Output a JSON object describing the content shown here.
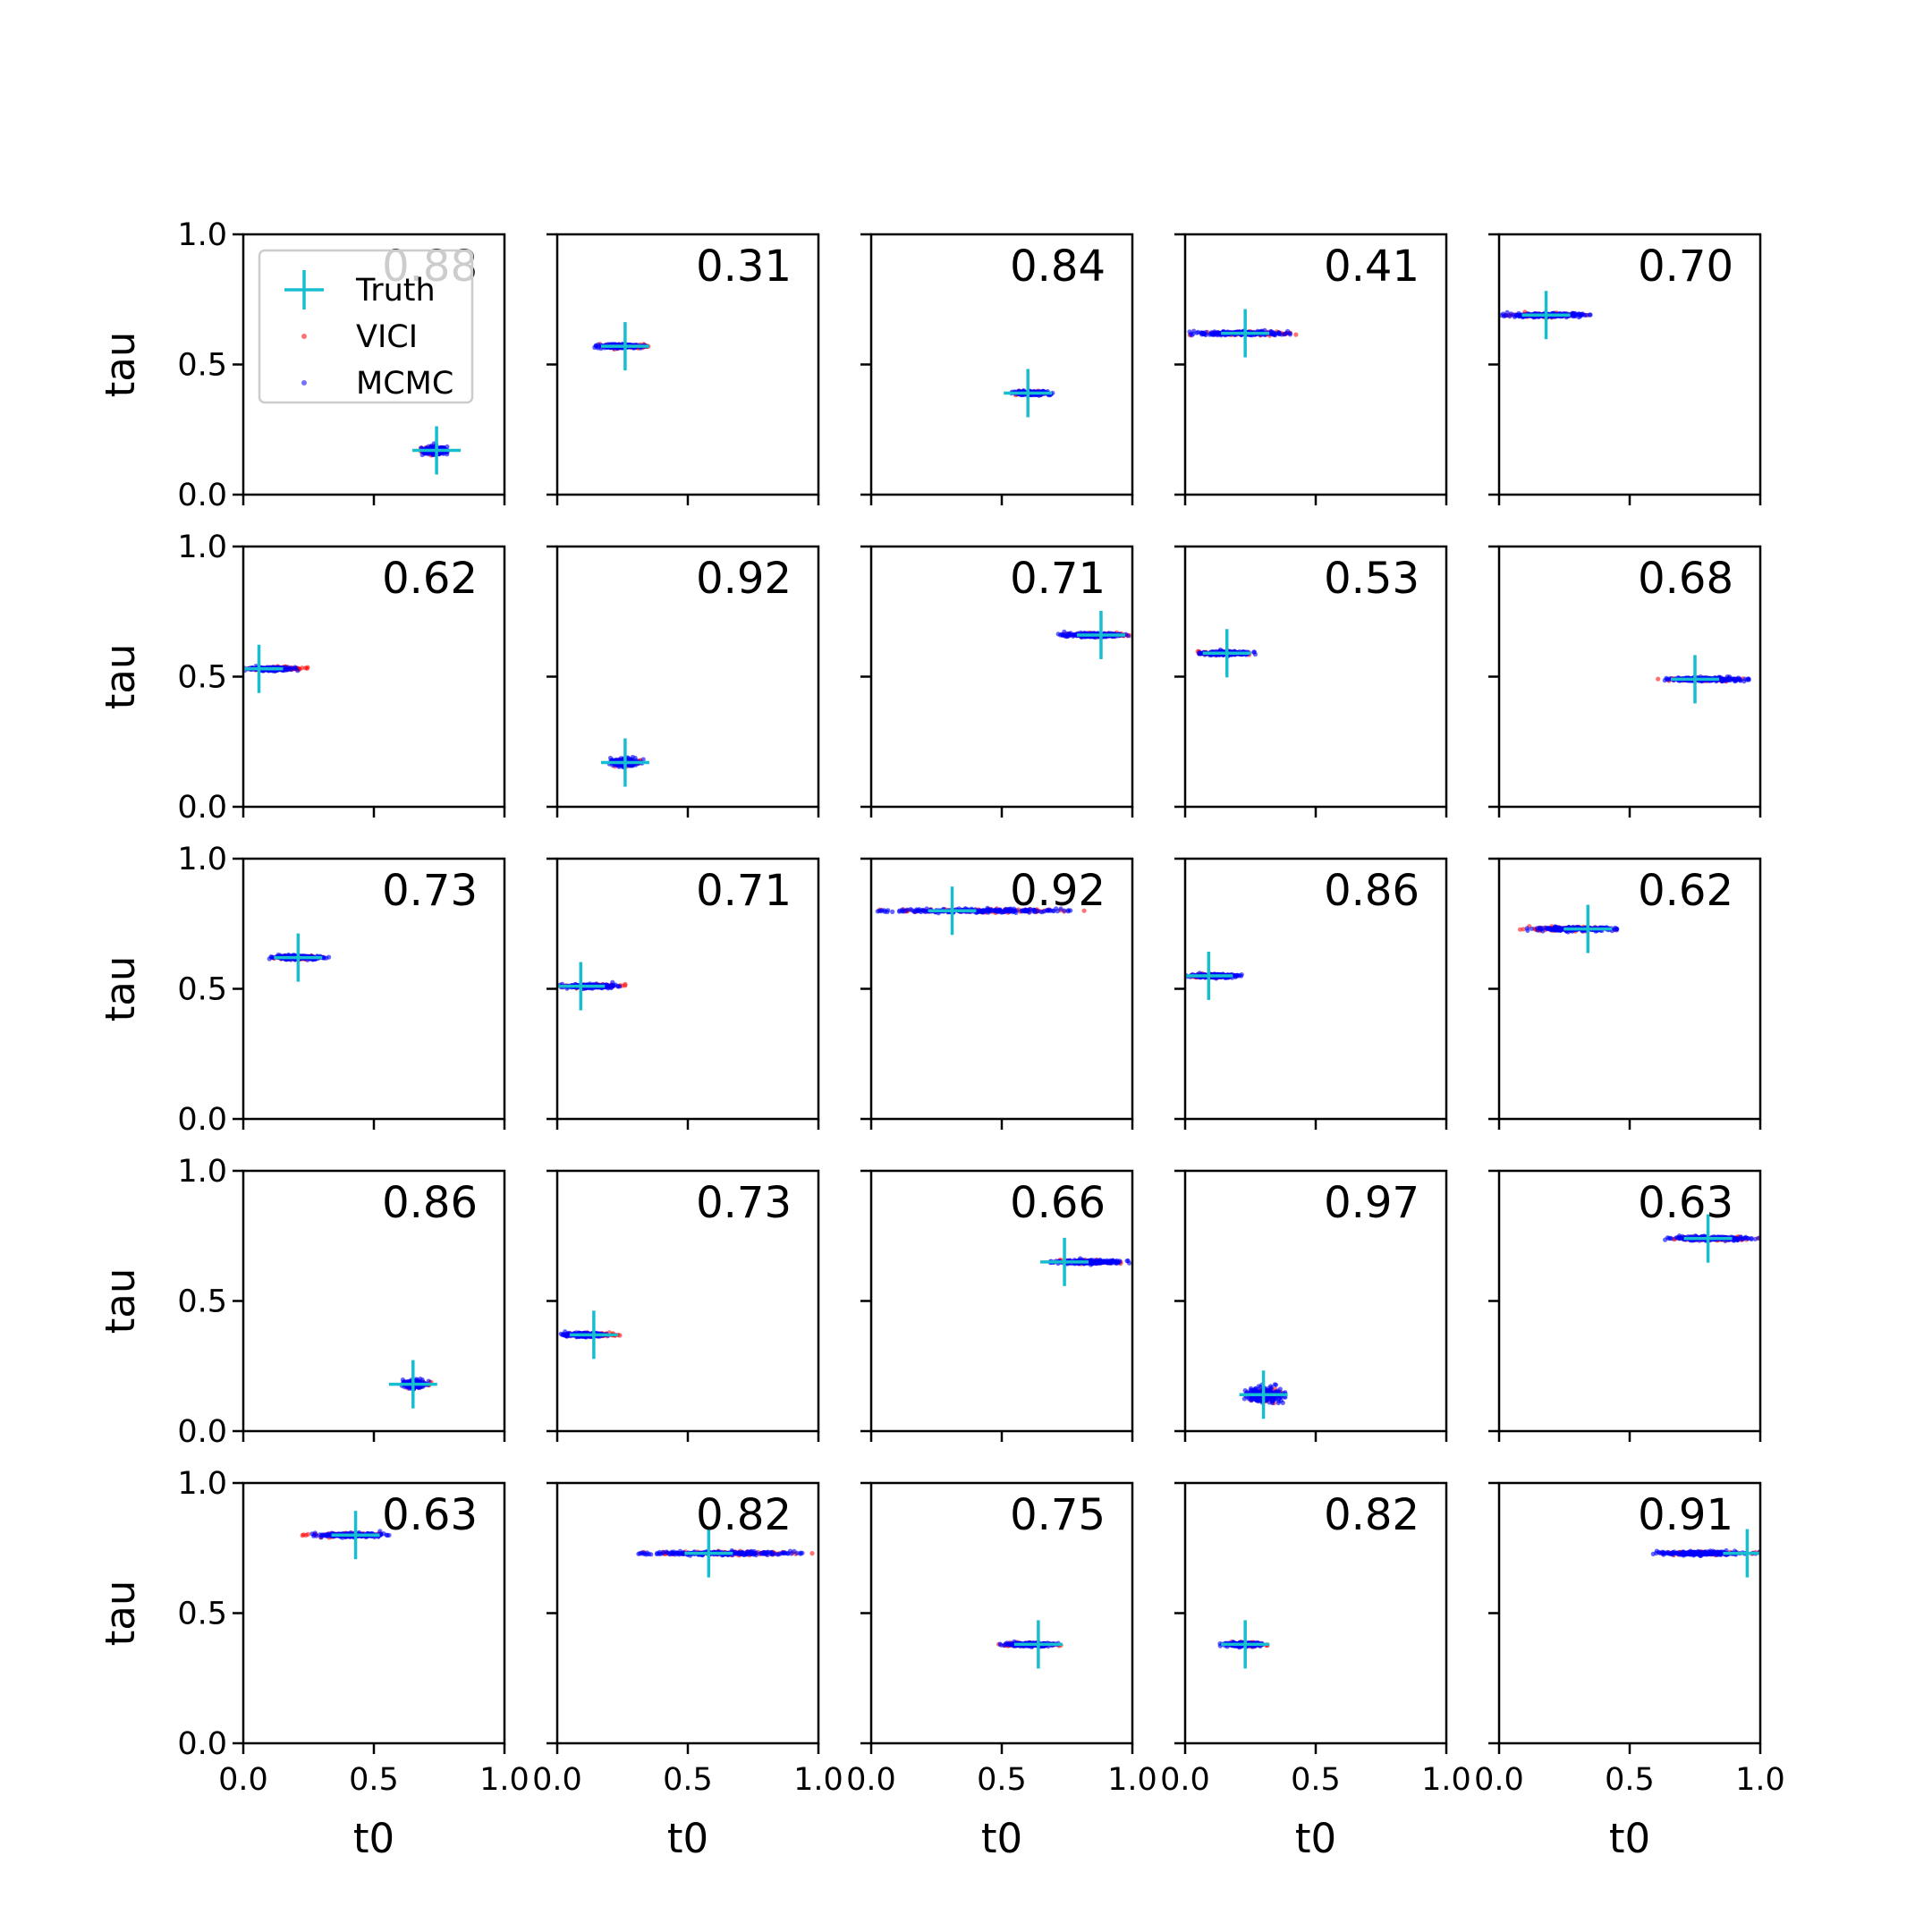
{
  "chart_data": {
    "type": "scatter",
    "title": "",
    "rows": 5,
    "cols": 5,
    "xlabel": "t0",
    "ylabel": "tau",
    "xlim": [
      0,
      1
    ],
    "ylim": [
      0,
      1
    ],
    "xticks": [
      "0.0",
      "0.5",
      "1.0"
    ],
    "yticks": [
      "0.0",
      "0.5",
      "1.0"
    ],
    "grid": false,
    "legend": {
      "placement": "upper-left of first panel",
      "entries": [
        {
          "name": "Truth",
          "marker": "cross",
          "color": "#17becf"
        },
        {
          "name": "VICI",
          "marker": "dot",
          "color": "#ff0000"
        },
        {
          "name": "MCMC",
          "marker": "dot",
          "color": "#0000ff"
        }
      ]
    },
    "colors": {
      "truth": "#17becf",
      "vici": "#ff0000",
      "mcmc": "#0000ff"
    },
    "panels": [
      {
        "overlap": "0.88",
        "truth": [
          0.74,
          0.17
        ],
        "mcmc_t0": [
          0.68,
          0.79
        ],
        "vici_t0": [
          0.67,
          0.78
        ],
        "tau_width": 0.02
      },
      {
        "overlap": "0.31",
        "truth": [
          0.26,
          0.57
        ],
        "mcmc_t0": [
          0.14,
          0.34
        ],
        "vici_t0": [
          0.16,
          0.36
        ],
        "tau_width": 0.01
      },
      {
        "overlap": "0.84",
        "truth": [
          0.6,
          0.39
        ],
        "mcmc_t0": [
          0.53,
          0.7
        ],
        "vici_t0": [
          0.53,
          0.68
        ],
        "tau_width": 0.01
      },
      {
        "overlap": "0.41",
        "truth": [
          0.23,
          0.62
        ],
        "mcmc_t0": [
          0.0,
          0.41
        ],
        "vici_t0": [
          0.01,
          0.44
        ],
        "tau_width": 0.01
      },
      {
        "overlap": "0.70",
        "truth": [
          0.18,
          0.69
        ],
        "mcmc_t0": [
          0.0,
          0.35
        ],
        "vici_t0": [
          0.01,
          0.37
        ],
        "tau_width": 0.01
      },
      {
        "overlap": "0.62",
        "truth": [
          0.06,
          0.53
        ],
        "mcmc_t0": [
          0.0,
          0.21
        ],
        "vici_t0": [
          0.01,
          0.25
        ],
        "tau_width": 0.01
      },
      {
        "overlap": "0.92",
        "truth": [
          0.26,
          0.17
        ],
        "mcmc_t0": [
          0.19,
          0.33
        ],
        "vici_t0": [
          0.2,
          0.32
        ],
        "tau_width": 0.02
      },
      {
        "overlap": "0.71",
        "truth": [
          0.88,
          0.66
        ],
        "mcmc_t0": [
          0.71,
          0.99
        ],
        "vici_t0": [
          0.72,
          0.99
        ],
        "tau_width": 0.01
      },
      {
        "overlap": "0.53",
        "truth": [
          0.16,
          0.59
        ],
        "mcmc_t0": [
          0.05,
          0.27
        ],
        "vici_t0": [
          0.03,
          0.25
        ],
        "tau_width": 0.01
      },
      {
        "overlap": "0.68",
        "truth": [
          0.75,
          0.49
        ],
        "mcmc_t0": [
          0.62,
          0.97
        ],
        "vici_t0": [
          0.6,
          0.94
        ],
        "tau_width": 0.01
      },
      {
        "overlap": "0.73",
        "truth": [
          0.21,
          0.62
        ],
        "mcmc_t0": [
          0.09,
          0.33
        ],
        "vici_t0": [
          0.1,
          0.31
        ],
        "tau_width": 0.01
      },
      {
        "overlap": "0.71",
        "truth": [
          0.09,
          0.51
        ],
        "mcmc_t0": [
          0.0,
          0.24
        ],
        "vici_t0": [
          0.01,
          0.26
        ],
        "tau_width": 0.01
      },
      {
        "overlap": "0.92",
        "truth": [
          0.31,
          0.8
        ],
        "mcmc_t0": [
          0.0,
          0.8
        ],
        "vici_t0": [
          0.02,
          0.82
        ],
        "tau_width": 0.01
      },
      {
        "overlap": "0.86",
        "truth": [
          0.09,
          0.55
        ],
        "mcmc_t0": [
          0.0,
          0.22
        ],
        "vici_t0": [
          0.01,
          0.18
        ],
        "tau_width": 0.01
      },
      {
        "overlap": "0.62",
        "truth": [
          0.34,
          0.73
        ],
        "mcmc_t0": [
          0.1,
          0.48
        ],
        "vici_t0": [
          0.02,
          0.49
        ],
        "tau_width": 0.01
      },
      {
        "overlap": "0.86",
        "truth": [
          0.65,
          0.18
        ],
        "mcmc_t0": [
          0.6,
          0.71
        ],
        "vici_t0": [
          0.61,
          0.72
        ],
        "tau_width": 0.02
      },
      {
        "overlap": "0.73",
        "truth": [
          0.14,
          0.37
        ],
        "mcmc_t0": [
          0.01,
          0.2
        ],
        "vici_t0": [
          0.02,
          0.24
        ],
        "tau_width": 0.01
      },
      {
        "overlap": "0.66",
        "truth": [
          0.74,
          0.65
        ],
        "mcmc_t0": [
          0.68,
          0.99
        ],
        "vici_t0": [
          0.7,
          0.96
        ],
        "tau_width": 0.01
      },
      {
        "overlap": "0.97",
        "truth": [
          0.3,
          0.14
        ],
        "mcmc_t0": [
          0.22,
          0.39
        ],
        "vici_t0": [
          0.23,
          0.37
        ],
        "tau_width": 0.04
      },
      {
        "overlap": "0.63",
        "truth": [
          0.8,
          0.74
        ],
        "mcmc_t0": [
          0.62,
          1.0
        ],
        "vici_t0": [
          0.64,
          1.0
        ],
        "tau_width": 0.01
      },
      {
        "overlap": "0.63",
        "truth": [
          0.43,
          0.8
        ],
        "mcmc_t0": [
          0.25,
          0.56
        ],
        "vici_t0": [
          0.22,
          0.52
        ],
        "tau_width": 0.01
      },
      {
        "overlap": "0.82",
        "truth": [
          0.58,
          0.73
        ],
        "mcmc_t0": [
          0.29,
          0.97
        ],
        "vici_t0": [
          0.32,
          0.98
        ],
        "tau_width": 0.01
      },
      {
        "overlap": "0.75",
        "truth": [
          0.64,
          0.38
        ],
        "mcmc_t0": [
          0.49,
          0.72
        ],
        "vici_t0": [
          0.47,
          0.74
        ],
        "tau_width": 0.01
      },
      {
        "overlap": "0.82",
        "truth": [
          0.23,
          0.38
        ],
        "mcmc_t0": [
          0.13,
          0.31
        ],
        "vici_t0": [
          0.14,
          0.33
        ],
        "tau_width": 0.01
      },
      {
        "overlap": "0.91",
        "truth": [
          0.95,
          0.73
        ],
        "mcmc_t0": [
          0.56,
          1.0
        ],
        "vici_t0": [
          0.6,
          1.0
        ],
        "tau_width": 0.01
      }
    ]
  }
}
